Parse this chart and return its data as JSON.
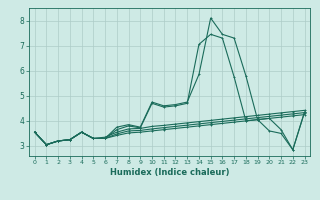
{
  "xlabel": "Humidex (Indice chaleur)",
  "xlim": [
    -0.5,
    23.5
  ],
  "ylim": [
    2.6,
    8.5
  ],
  "xticks": [
    0,
    1,
    2,
    3,
    4,
    5,
    6,
    7,
    8,
    9,
    10,
    11,
    12,
    13,
    14,
    15,
    16,
    17,
    18,
    19,
    20,
    21,
    22,
    23
  ],
  "yticks": [
    3,
    4,
    5,
    6,
    7,
    8
  ],
  "background_color": "#ceeae5",
  "grid_color": "#aeccc8",
  "line_color": "#1a6b5a",
  "lines": [
    [
      3.55,
      3.05,
      3.2,
      3.25,
      3.55,
      3.3,
      3.3,
      3.75,
      3.85,
      3.75,
      4.75,
      4.6,
      4.65,
      4.75,
      5.85,
      8.1,
      7.45,
      7.3,
      5.8,
      4.05,
      4.1,
      3.65,
      2.85,
      4.35
    ],
    [
      3.55,
      3.05,
      3.2,
      3.25,
      3.55,
      3.3,
      3.3,
      3.65,
      3.8,
      3.72,
      4.7,
      4.55,
      4.6,
      4.7,
      7.05,
      7.45,
      7.3,
      5.75,
      4.0,
      4.05,
      3.6,
      3.5,
      2.85,
      4.35
    ],
    [
      3.55,
      3.05,
      3.2,
      3.25,
      3.55,
      3.3,
      3.35,
      3.55,
      3.68,
      3.7,
      3.78,
      3.82,
      3.87,
      3.92,
      3.97,
      4.02,
      4.07,
      4.12,
      4.17,
      4.22,
      4.27,
      4.32,
      4.37,
      4.42
    ],
    [
      3.55,
      3.05,
      3.2,
      3.25,
      3.55,
      3.3,
      3.3,
      3.48,
      3.6,
      3.62,
      3.68,
      3.73,
      3.78,
      3.83,
      3.88,
      3.93,
      3.98,
      4.03,
      4.08,
      4.13,
      4.18,
      4.23,
      4.28,
      4.33
    ],
    [
      3.55,
      3.05,
      3.2,
      3.25,
      3.55,
      3.3,
      3.3,
      3.42,
      3.52,
      3.55,
      3.6,
      3.65,
      3.7,
      3.75,
      3.8,
      3.85,
      3.9,
      3.95,
      4.0,
      4.05,
      4.1,
      4.15,
      4.2,
      4.25
    ]
  ]
}
